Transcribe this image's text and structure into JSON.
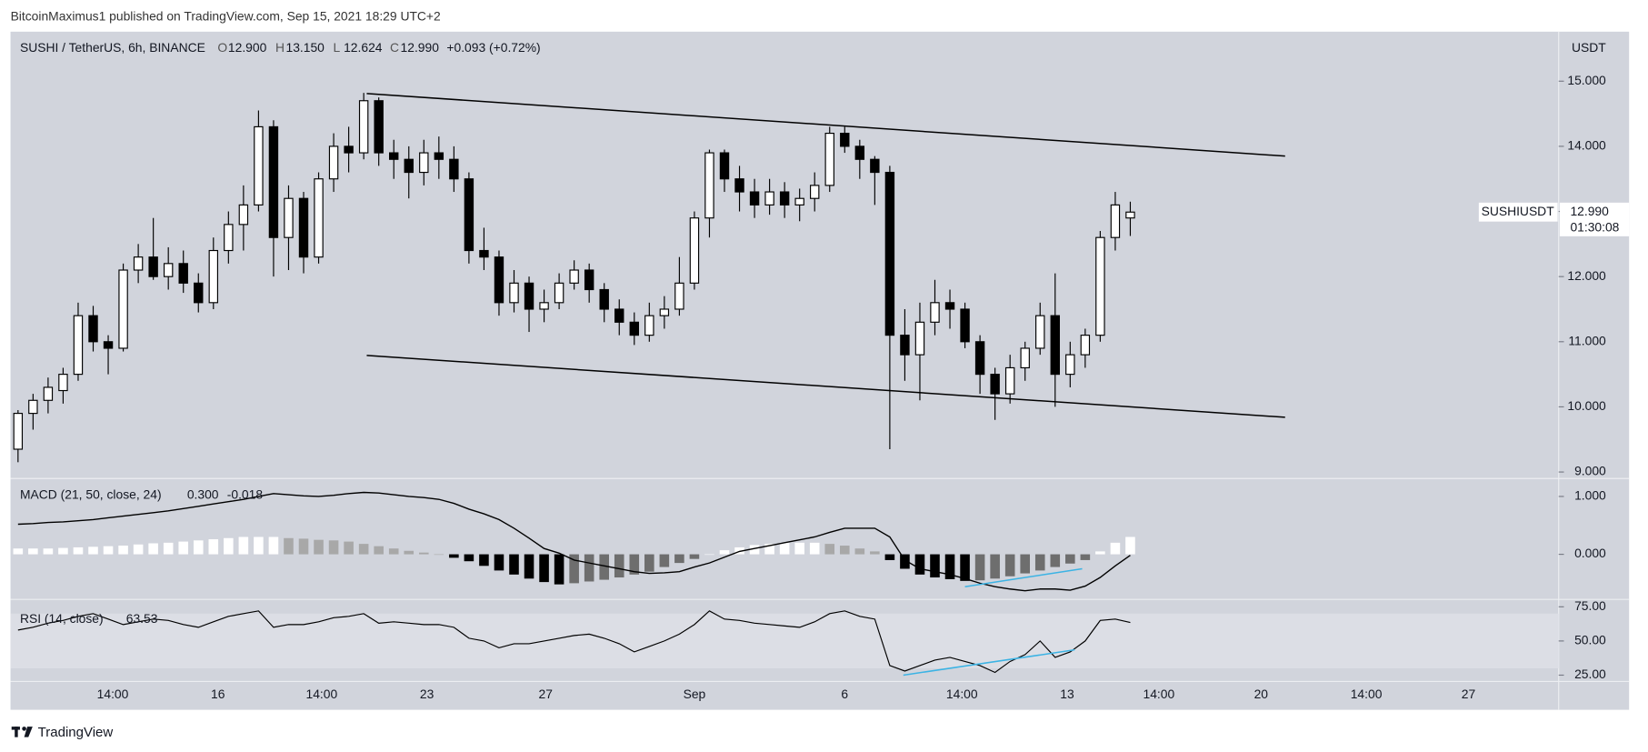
{
  "header": {
    "publisher": "BitcoinMaximus1 published on TradingView.com, Sep 15, 2021 18:29 UTC+2"
  },
  "footer": {
    "brand": "TradingView"
  },
  "chart_data": [
    {
      "type": "candlestick",
      "title": "SUSHI / TetherUS, 6h, BINANCE",
      "ohlc_names": [
        "O",
        "H",
        "L",
        "C"
      ],
      "ohlc_labels": [
        "12.900",
        "13.150",
        "12.624",
        "12.990"
      ],
      "change": "+0.093 (+0.72%)",
      "up_color": "#ffffff",
      "down_color": "#000000",
      "candles": [
        [
          9.35,
          9.95,
          9.15,
          9.9
        ],
        [
          9.9,
          10.2,
          9.65,
          10.1
        ],
        [
          10.1,
          10.45,
          9.9,
          10.3
        ],
        [
          10.25,
          10.6,
          10.05,
          10.5
        ],
        [
          10.5,
          11.6,
          10.4,
          11.4
        ],
        [
          11.4,
          11.55,
          10.85,
          11.0
        ],
        [
          11.0,
          11.1,
          10.5,
          10.9
        ],
        [
          10.9,
          12.2,
          10.85,
          12.1
        ],
        [
          12.1,
          12.5,
          11.9,
          12.3
        ],
        [
          12.3,
          12.9,
          11.95,
          12.0
        ],
        [
          12.0,
          12.45,
          11.8,
          12.2
        ],
        [
          12.2,
          12.4,
          11.75,
          11.9
        ],
        [
          11.9,
          12.05,
          11.45,
          11.6
        ],
        [
          11.6,
          12.6,
          11.5,
          12.4
        ],
        [
          12.4,
          13.0,
          12.2,
          12.8
        ],
        [
          12.8,
          13.4,
          12.4,
          13.1
        ],
        [
          13.1,
          14.55,
          13.0,
          14.3
        ],
        [
          14.3,
          14.4,
          12.0,
          12.6
        ],
        [
          12.6,
          13.4,
          12.1,
          13.2
        ],
        [
          13.2,
          13.3,
          12.05,
          12.3
        ],
        [
          12.3,
          13.6,
          12.2,
          13.5
        ],
        [
          13.5,
          14.2,
          13.3,
          14.0
        ],
        [
          14.0,
          14.3,
          13.6,
          13.9
        ],
        [
          13.9,
          14.82,
          13.8,
          14.7
        ],
        [
          14.7,
          14.75,
          13.7,
          13.9
        ],
        [
          13.9,
          14.1,
          13.5,
          13.8
        ],
        [
          13.8,
          14.0,
          13.2,
          13.6
        ],
        [
          13.6,
          14.1,
          13.4,
          13.9
        ],
        [
          13.9,
          14.15,
          13.5,
          13.8
        ],
        [
          13.8,
          14.0,
          13.3,
          13.5
        ],
        [
          13.5,
          13.6,
          12.2,
          12.4
        ],
        [
          12.4,
          12.75,
          12.1,
          12.3
        ],
        [
          12.3,
          12.4,
          11.4,
          11.6
        ],
        [
          11.6,
          12.1,
          11.45,
          11.9
        ],
        [
          11.9,
          12.0,
          11.15,
          11.5
        ],
        [
          11.5,
          11.8,
          11.3,
          11.6
        ],
        [
          11.6,
          12.05,
          11.5,
          11.9
        ],
        [
          11.9,
          12.25,
          11.8,
          12.1
        ],
        [
          12.1,
          12.2,
          11.6,
          11.8
        ],
        [
          11.8,
          11.9,
          11.3,
          11.5
        ],
        [
          11.5,
          11.65,
          11.1,
          11.3
        ],
        [
          11.3,
          11.45,
          10.95,
          11.1
        ],
        [
          11.1,
          11.6,
          11.0,
          11.4
        ],
        [
          11.4,
          11.7,
          11.2,
          11.5
        ],
        [
          11.5,
          12.3,
          11.4,
          11.9
        ],
        [
          11.9,
          13.0,
          11.8,
          12.9
        ],
        [
          12.9,
          13.95,
          12.6,
          13.9
        ],
        [
          13.9,
          13.95,
          13.3,
          13.5
        ],
        [
          13.5,
          13.7,
          13.0,
          13.3
        ],
        [
          13.3,
          13.5,
          12.9,
          13.1
        ],
        [
          13.1,
          13.5,
          12.95,
          13.3
        ],
        [
          13.3,
          13.45,
          12.9,
          13.1
        ],
        [
          13.1,
          13.35,
          12.85,
          13.2
        ],
        [
          13.2,
          13.6,
          13.0,
          13.4
        ],
        [
          13.4,
          14.3,
          13.3,
          14.2
        ],
        [
          14.2,
          14.3,
          13.9,
          14.0
        ],
        [
          14.0,
          14.1,
          13.5,
          13.8
        ],
        [
          13.8,
          13.85,
          13.1,
          13.6
        ],
        [
          13.6,
          13.7,
          9.35,
          11.1
        ],
        [
          11.1,
          11.5,
          10.4,
          10.8
        ],
        [
          10.8,
          11.6,
          10.1,
          11.3
        ],
        [
          11.3,
          11.95,
          11.1,
          11.6
        ],
        [
          11.6,
          11.8,
          11.2,
          11.5
        ],
        [
          11.5,
          11.6,
          10.9,
          11.0
        ],
        [
          11.0,
          11.1,
          10.2,
          10.5
        ],
        [
          10.5,
          10.6,
          9.8,
          10.2
        ],
        [
          10.2,
          10.8,
          10.05,
          10.6
        ],
        [
          10.6,
          11.0,
          10.4,
          10.9
        ],
        [
          10.9,
          11.6,
          10.8,
          11.4
        ],
        [
          11.4,
          12.05,
          10.0,
          10.5
        ],
        [
          10.5,
          11.0,
          10.3,
          10.8
        ],
        [
          10.8,
          11.2,
          10.6,
          11.1
        ],
        [
          11.1,
          12.7,
          11.0,
          12.6
        ],
        [
          12.6,
          13.3,
          12.4,
          13.1
        ],
        [
          12.9,
          13.15,
          12.624,
          12.99
        ]
      ],
      "xlim": [
        -0.5,
        102.5
      ],
      "xticks": [
        {
          "value": 6.3,
          "label": "14:00"
        },
        {
          "value": 13.3,
          "label": "16"
        },
        {
          "value": 20.2,
          "label": "14:00"
        },
        {
          "value": 27.2,
          "label": "23"
        },
        {
          "value": 35.1,
          "label": "27"
        },
        {
          "value": 45.0,
          "label": "Sep"
        },
        {
          "value": 55.0,
          "label": "6"
        },
        {
          "value": 62.8,
          "label": "14:00"
        },
        {
          "value": 69.8,
          "label": "13"
        },
        {
          "value": 75.9,
          "label": "14:00"
        },
        {
          "value": 82.7,
          "label": "20"
        },
        {
          "value": 89.7,
          "label": "14:00"
        },
        {
          "value": 96.5,
          "label": "27"
        }
      ],
      "ylim": [
        8.9,
        15.76
      ],
      "yticks": [
        {
          "value": 9,
          "label": "9.000"
        },
        {
          "value": 10,
          "label": "10.000"
        },
        {
          "value": 11,
          "label": "11.000"
        },
        {
          "value": 12,
          "label": "12.000"
        },
        {
          "value": 13,
          "label": "13.000"
        },
        {
          "value": 14,
          "label": "14.000"
        },
        {
          "value": 15,
          "label": "15.000"
        }
      ],
      "y_unit": "USDT",
      "symbol": "SUSHIUSDT",
      "last_price_label": "12.990",
      "countdown": "01:30:08",
      "trendlines": [
        {
          "x": [
            23.2,
            84.3
          ],
          "y": [
            14.81,
            13.85
          ],
          "color": "#000000"
        },
        {
          "x": [
            23.2,
            84.3
          ],
          "y": [
            10.79,
            9.84
          ],
          "color": "#000000"
        }
      ]
    },
    {
      "type": "macd",
      "title": "MACD (21, 50, close, 24)",
      "histogram_label": "0.300",
      "line_color": "#000000",
      "hist_colors": {
        "pos_up": "#ffffff",
        "pos_down": "#a8a8a8",
        "neg_down": "#000000",
        "neg_up": "#6e6e6e"
      },
      "macd": [
        0.52,
        0.53,
        0.55,
        0.56,
        0.58,
        0.6,
        0.63,
        0.66,
        0.69,
        0.72,
        0.75,
        0.79,
        0.83,
        0.87,
        0.91,
        0.95,
        1.0,
        1.05,
        1.03,
        1.01,
        1.0,
        1.02,
        1.05,
        1.07,
        1.06,
        1.03,
        1.0,
        0.98,
        0.95,
        0.88,
        0.78,
        0.7,
        0.6,
        0.45,
        0.28,
        0.1,
        0.02,
        -0.1,
        -0.15,
        -0.2,
        -0.25,
        -0.3,
        -0.33,
        -0.32,
        -0.3,
        -0.22,
        -0.15,
        -0.05,
        0.05,
        0.1,
        0.15,
        0.2,
        0.25,
        0.3,
        0.38,
        0.45,
        0.45,
        0.45,
        0.3,
        -0.1,
        -0.25,
        -0.3,
        -0.35,
        -0.42,
        -0.5,
        -0.56,
        -0.6,
        -0.63,
        -0.6,
        -0.6,
        -0.62,
        -0.55,
        -0.4,
        -0.2,
        -0.018
      ],
      "histogram": [
        0.1,
        0.1,
        0.1,
        0.11,
        0.12,
        0.13,
        0.14,
        0.15,
        0.17,
        0.19,
        0.2,
        0.22,
        0.24,
        0.26,
        0.28,
        0.3,
        0.3,
        0.3,
        0.28,
        0.27,
        0.25,
        0.24,
        0.22,
        0.18,
        0.14,
        0.1,
        0.06,
        0.03,
        0.0,
        -0.06,
        -0.12,
        -0.2,
        -0.28,
        -0.35,
        -0.42,
        -0.48,
        -0.52,
        -0.5,
        -0.47,
        -0.44,
        -0.4,
        -0.35,
        -0.3,
        -0.22,
        -0.15,
        -0.08,
        0.0,
        0.07,
        0.12,
        0.16,
        0.18,
        0.2,
        0.2,
        0.2,
        0.18,
        0.15,
        0.1,
        0.05,
        -0.1,
        -0.25,
        -0.35,
        -0.4,
        -0.43,
        -0.46,
        -0.45,
        -0.42,
        -0.38,
        -0.33,
        -0.28,
        -0.22,
        -0.16,
        -0.1,
        0.05,
        0.2,
        0.3
      ],
      "ylim": [
        -0.78,
        1.31
      ],
      "yticks": [
        {
          "value": 0,
          "label": "0.000"
        },
        {
          "value": 1,
          "label": "1.000"
        }
      ],
      "trendlines": [
        {
          "x": [
            63.0,
            70.8
          ],
          "y": [
            -0.56,
            -0.25
          ],
          "color": "#3bb3e4"
        }
      ]
    },
    {
      "type": "line",
      "title": "RSI (14, close)",
      "color": "#000000",
      "band": [
        30,
        70
      ],
      "band_color": "#dcdee5",
      "values": [
        58,
        60,
        63,
        65,
        68,
        70,
        66,
        62,
        64,
        66,
        65,
        62,
        60,
        64,
        68,
        70,
        72,
        60,
        62,
        62,
        64,
        67,
        68,
        70,
        63,
        64,
        63,
        62,
        62,
        60,
        52,
        50,
        45,
        48,
        48,
        50,
        52,
        54,
        55,
        52,
        48,
        42,
        46,
        50,
        55,
        62,
        72,
        66,
        65,
        63,
        62,
        61,
        60,
        64,
        70,
        72,
        68,
        66,
        32,
        28,
        32,
        36,
        38,
        35,
        32,
        27,
        35,
        40,
        50,
        38,
        42,
        50,
        65,
        66,
        63.53
      ],
      "ylim": [
        20.4,
        80.4
      ],
      "yticks": [
        {
          "value": 25,
          "label": "25.00"
        },
        {
          "value": 50,
          "label": "50.00"
        },
        {
          "value": 75,
          "label": "75.00"
        }
      ],
      "trendlines": [
        {
          "x": [
            58.9,
            70.3
          ],
          "y": [
            25,
            43.5
          ],
          "color": "#3bb3e4"
        }
      ]
    }
  ]
}
